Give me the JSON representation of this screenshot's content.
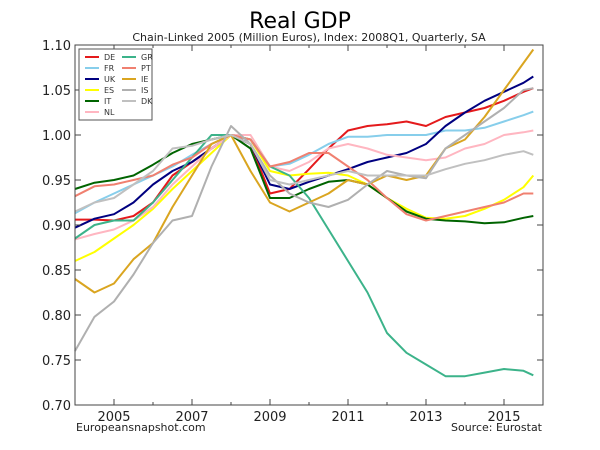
{
  "chart_data": {
    "type": "line",
    "title": "Real GDP",
    "subtitle": "Chain-Linked 2005 (Million Euros), Index: 2008Q1, Quarterly, SA",
    "xlabel": "",
    "ylabel": "",
    "xlim": [
      2004.0,
      2016.0
    ],
    "ylim": [
      0.7,
      1.1
    ],
    "xticks": [
      2005,
      2007,
      2009,
      2011,
      2013,
      2015
    ],
    "xtick_labels": [
      "2005",
      "2007",
      "2009",
      "2011",
      "2013",
      "2015"
    ],
    "yticks": [
      0.7,
      0.75,
      0.8,
      0.85,
      0.9,
      0.95,
      1.0,
      1.05,
      1.1
    ],
    "ytick_labels": [
      "0.70",
      "0.75",
      "0.80",
      "0.85",
      "0.90",
      "0.95",
      "1.00",
      "1.05",
      "1.10"
    ],
    "grid": false,
    "legend_position": "top-left",
    "footer_left": "Europeansnapshot.com",
    "footer_right": "Source: Eurostat",
    "x": [
      2004.0,
      2004.5,
      2005.0,
      2005.5,
      2006.0,
      2006.5,
      2007.0,
      2007.5,
      2008.0,
      2008.5,
      2009.0,
      2009.5,
      2010.0,
      2010.5,
      2011.0,
      2011.5,
      2012.0,
      2012.5,
      2013.0,
      2013.5,
      2014.0,
      2014.5,
      2015.0,
      2015.5,
      2015.75
    ],
    "series": [
      {
        "name": "DE",
        "color": "#e41a1c",
        "values": [
          0.906,
          0.906,
          0.905,
          0.91,
          0.925,
          0.955,
          0.97,
          0.985,
          1.0,
          0.99,
          0.935,
          0.94,
          0.962,
          0.985,
          1.005,
          1.01,
          1.012,
          1.015,
          1.01,
          1.02,
          1.025,
          1.03,
          1.038,
          1.048,
          1.052
        ]
      },
      {
        "name": "FR",
        "color": "#87ceeb",
        "values": [
          0.913,
          0.925,
          0.935,
          0.945,
          0.955,
          0.965,
          0.978,
          0.99,
          1.0,
          0.995,
          0.965,
          0.968,
          0.978,
          0.99,
          0.998,
          0.998,
          1.0,
          1.0,
          1.0,
          1.005,
          1.005,
          1.008,
          1.015,
          1.022,
          1.026
        ]
      },
      {
        "name": "UK",
        "color": "#000080",
        "values": [
          0.897,
          0.907,
          0.912,
          0.925,
          0.945,
          0.96,
          0.97,
          0.985,
          1.0,
          0.99,
          0.945,
          0.94,
          0.948,
          0.955,
          0.962,
          0.97,
          0.975,
          0.98,
          0.99,
          1.01,
          1.025,
          1.038,
          1.048,
          1.058,
          1.065
        ]
      },
      {
        "name": "ES",
        "color": "#ffff00",
        "values": [
          0.86,
          0.87,
          0.885,
          0.9,
          0.918,
          0.94,
          0.96,
          0.98,
          1.0,
          0.995,
          0.96,
          0.955,
          0.957,
          0.958,
          0.955,
          0.945,
          0.93,
          0.918,
          0.908,
          0.907,
          0.91,
          0.918,
          0.928,
          0.942,
          0.955
        ]
      },
      {
        "name": "IT",
        "color": "#006400",
        "values": [
          0.94,
          0.947,
          0.95,
          0.955,
          0.967,
          0.98,
          0.99,
          0.995,
          1.0,
          0.985,
          0.93,
          0.93,
          0.94,
          0.948,
          0.95,
          0.945,
          0.93,
          0.915,
          0.907,
          0.905,
          0.904,
          0.902,
          0.903,
          0.908,
          0.91
        ]
      },
      {
        "name": "NL",
        "color": "#ffb6c1",
        "values": [
          0.884,
          0.89,
          0.895,
          0.905,
          0.92,
          0.945,
          0.965,
          0.985,
          1.0,
          1.0,
          0.965,
          0.96,
          0.97,
          0.985,
          0.99,
          0.985,
          0.978,
          0.975,
          0.972,
          0.975,
          0.985,
          0.99,
          1.0,
          1.003,
          1.005
        ]
      },
      {
        "name": "GR",
        "color": "#3cb38a",
        "values": [
          0.885,
          0.9,
          0.905,
          0.905,
          0.925,
          0.95,
          0.975,
          1.0,
          1.0,
          0.995,
          0.965,
          0.955,
          0.93,
          0.895,
          0.86,
          0.825,
          0.78,
          0.758,
          0.745,
          0.732,
          0.732,
          0.736,
          0.74,
          0.738,
          0.733
        ]
      },
      {
        "name": "PT",
        "color": "#f08070",
        "values": [
          0.932,
          0.943,
          0.945,
          0.95,
          0.955,
          0.967,
          0.975,
          0.99,
          1.0,
          0.995,
          0.965,
          0.97,
          0.98,
          0.98,
          0.965,
          0.95,
          0.93,
          0.912,
          0.905,
          0.91,
          0.915,
          0.92,
          0.925,
          0.935,
          0.935
        ]
      },
      {
        "name": "IE",
        "color": "#daa520",
        "values": [
          0.84,
          0.825,
          0.835,
          0.862,
          0.88,
          0.92,
          0.955,
          0.99,
          1.0,
          0.96,
          0.925,
          0.915,
          0.925,
          0.935,
          0.95,
          0.945,
          0.955,
          0.95,
          0.955,
          0.985,
          0.995,
          1.02,
          1.05,
          1.08,
          1.095
        ]
      },
      {
        "name": "IS",
        "color": "#b0b0b0",
        "values": [
          0.76,
          0.798,
          0.815,
          0.845,
          0.88,
          0.905,
          0.91,
          0.965,
          1.01,
          0.99,
          0.955,
          0.935,
          0.925,
          0.92,
          0.928,
          0.945,
          0.96,
          0.955,
          0.952,
          0.985,
          1.0,
          1.015,
          1.03,
          1.05,
          1.052
        ]
      },
      {
        "name": "DK",
        "color": "#c0c0c0",
        "values": [
          0.915,
          0.925,
          0.93,
          0.945,
          0.96,
          0.985,
          0.988,
          0.995,
          1.0,
          0.99,
          0.95,
          0.945,
          0.95,
          0.955,
          0.96,
          0.955,
          0.955,
          0.955,
          0.955,
          0.962,
          0.968,
          0.972,
          0.978,
          0.982,
          0.978
        ]
      }
    ]
  }
}
